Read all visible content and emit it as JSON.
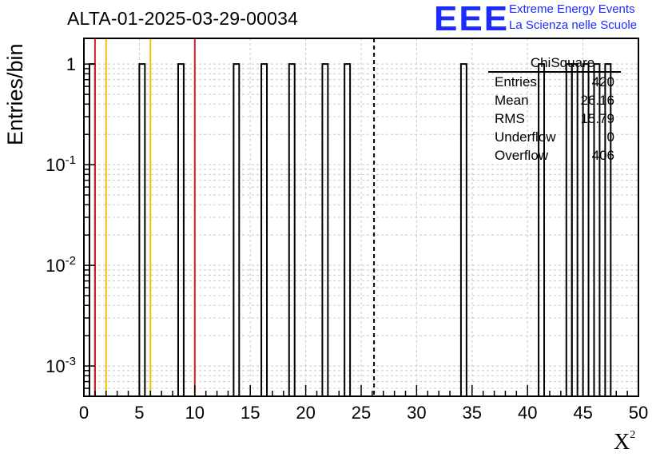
{
  "chart_data": {
    "type": "bar",
    "title": "ALTA-01-2025-03-29-00034",
    "xlabel": "X",
    "xlabel_superscript": "2",
    "ylabel": "Entries/bin",
    "xlim": [
      0,
      50
    ],
    "ylim": [
      0.0005,
      1.8
    ],
    "yscale": "log",
    "grid": true,
    "x_ticks": [
      "0",
      "5",
      "10",
      "15",
      "20",
      "25",
      "30",
      "35",
      "40",
      "45",
      "50"
    ],
    "y_ticks": [
      {
        "base": "10",
        "exp": "-3",
        "value": 0.001
      },
      {
        "base": "10",
        "exp": "-2",
        "value": 0.01
      },
      {
        "base": "10",
        "exp": "-1",
        "value": 0.1
      },
      {
        "base": "1",
        "exp": "",
        "value": 1
      }
    ],
    "bin_width": 0.5,
    "bars": [
      {
        "x0": 0.5,
        "value": 1
      },
      {
        "x0": 5.0,
        "value": 1
      },
      {
        "x0": 8.5,
        "value": 1
      },
      {
        "x0": 13.5,
        "value": 1
      },
      {
        "x0": 16.0,
        "value": 1
      },
      {
        "x0": 18.5,
        "value": 1
      },
      {
        "x0": 21.5,
        "value": 1
      },
      {
        "x0": 23.5,
        "value": 1
      },
      {
        "x0": 34.0,
        "value": 1
      },
      {
        "x0": 41.0,
        "value": 1
      },
      {
        "x0": 43.5,
        "value": 1
      },
      {
        "x0": 44.0,
        "value": 1
      },
      {
        "x0": 45.0,
        "value": 1
      },
      {
        "x0": 46.0,
        "value": 1
      },
      {
        "x0": 47.0,
        "value": 1
      }
    ],
    "reference_lines": [
      {
        "x": 1.0,
        "color": "#d62020",
        "style": "solid"
      },
      {
        "x": 2.0,
        "color": "#f2c200",
        "style": "solid"
      },
      {
        "x": 6.0,
        "color": "#f2c200",
        "style": "solid"
      },
      {
        "x": 10.0,
        "color": "#d62020",
        "style": "solid"
      },
      {
        "x": 26.16,
        "color": "#000000",
        "style": "dashed"
      }
    ],
    "stats": {
      "name": "ChiSquare",
      "rows": [
        {
          "label": "Entries",
          "value": "420"
        },
        {
          "label": "Mean",
          "value": "26.16"
        },
        {
          "label": "RMS",
          "value": "15.79"
        },
        {
          "label": "Underflow",
          "value": "0"
        },
        {
          "label": "Overflow",
          "value": "406"
        }
      ]
    }
  },
  "logo": {
    "mark": "EEE",
    "line1": "Extreme Energy Events",
    "line2": "La Scienza nelle Scuole",
    "color": "#1e2bff"
  }
}
